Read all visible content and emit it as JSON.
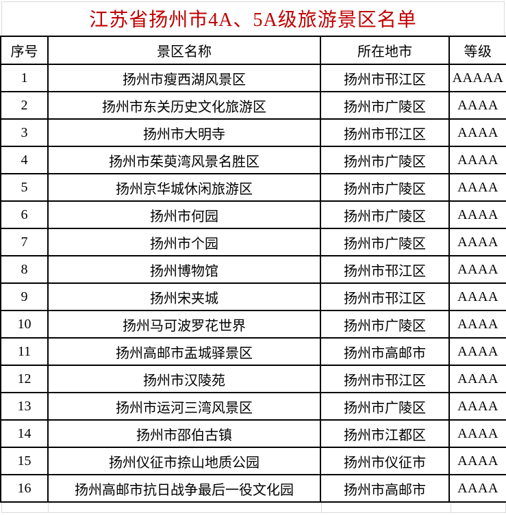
{
  "title": "江苏省扬州市4A、5A级旅游景区名单",
  "colors": {
    "title_text": "#c00000",
    "body_text": "#000000",
    "table_border": "#000000",
    "gridline": "#d9d9d9",
    "background": "#ffffff"
  },
  "table": {
    "headers": [
      "序号",
      "景区名称",
      "所在地市",
      "等级"
    ],
    "rows": [
      [
        "1",
        "扬州市瘦西湖风景区",
        "扬州市邗江区",
        "AAAAA"
      ],
      [
        "2",
        "扬州市东关历史文化旅游区",
        "扬州市广陵区",
        "AAAA"
      ],
      [
        "3",
        "扬州市大明寺",
        "扬州市邗江区",
        "AAAA"
      ],
      [
        "4",
        "扬州市茱萸湾风景名胜区",
        "扬州市广陵区",
        "AAAA"
      ],
      [
        "5",
        "扬州京华城休闲旅游区",
        "扬州市广陵区",
        "AAAA"
      ],
      [
        "6",
        "扬州市何园",
        "扬州市广陵区",
        "AAAA"
      ],
      [
        "7",
        "扬州市个园",
        "扬州市广陵区",
        "AAAA"
      ],
      [
        "8",
        "扬州博物馆",
        "扬州市邗江区",
        "AAAA"
      ],
      [
        "9",
        "扬州宋夹城",
        "扬州市邗江区",
        "AAAA"
      ],
      [
        "10",
        "扬州马可波罗花世界",
        "扬州市广陵区",
        "AAAA"
      ],
      [
        "11",
        "扬州高邮市盂城驿景区",
        "扬州市高邮市",
        "AAAA"
      ],
      [
        "12",
        "扬州市汉陵苑",
        "扬州市邗江区",
        "AAAA"
      ],
      [
        "13",
        "扬州市运河三湾风景区",
        "扬州市广陵区",
        "AAAA"
      ],
      [
        "14",
        "扬州市邵伯古镇",
        "扬州市江都区",
        "AAAA"
      ],
      [
        "15",
        "扬州仪征市捺山地质公园",
        "扬州市仪征市",
        "AAAA"
      ],
      [
        "16",
        "扬州高邮市抗日战争最后一役文化园",
        "扬州市高邮市",
        "AAAA"
      ]
    ],
    "cell_names": [
      "row-index",
      "scenic-area-name",
      "city",
      "grade-badge"
    ]
  }
}
